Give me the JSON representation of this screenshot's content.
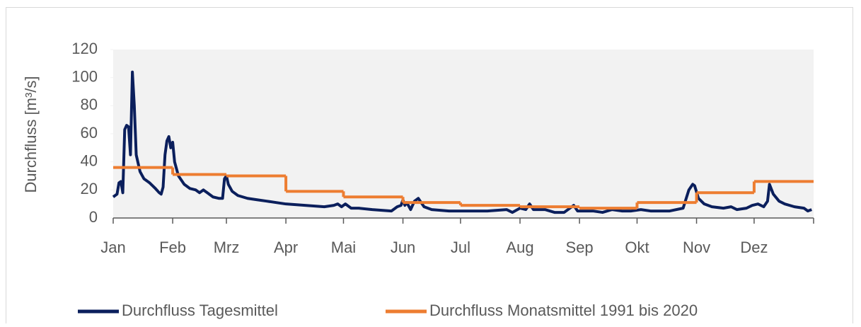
{
  "chart_data": {
    "type": "line",
    "y_label": "Durchfluss [m³/s]",
    "xlim": [
      0,
      365
    ],
    "ylim": [
      0,
      120
    ],
    "yticks": [
      0,
      20,
      40,
      60,
      80,
      100,
      120
    ],
    "xticks": [
      {
        "value": 0,
        "label": "Jan"
      },
      {
        "value": 31,
        "label": "Feb"
      },
      {
        "value": 59,
        "label": "Mrz"
      },
      {
        "value": 90,
        "label": "Apr"
      },
      {
        "value": 120,
        "label": "Mai"
      },
      {
        "value": 151,
        "label": "Jun"
      },
      {
        "value": 181,
        "label": "Jul"
      },
      {
        "value": 212,
        "label": "Aug"
      },
      {
        "value": 243,
        "label": "Sep"
      },
      {
        "value": 273,
        "label": "Okt"
      },
      {
        "value": 304,
        "label": "Nov"
      },
      {
        "value": 334,
        "label": "Dez"
      }
    ],
    "series": [
      {
        "name": "Durchfluss Tagesmittel",
        "color": "#0b1f5c",
        "style": "line",
        "x": [
          0,
          2,
          3,
          4,
          5,
          6,
          7,
          8,
          9,
          10,
          11,
          12,
          14,
          16,
          19,
          22,
          24,
          25,
          26,
          27,
          28,
          29,
          30,
          31,
          32,
          34,
          37,
          40,
          43,
          45,
          47,
          49,
          52,
          55,
          57,
          58,
          59,
          60,
          62,
          65,
          70,
          75,
          80,
          85,
          90,
          100,
          110,
          115,
          117,
          119,
          121,
          124,
          128,
          135,
          145,
          148,
          150,
          151,
          152,
          153,
          155,
          157,
          159,
          160,
          162,
          166,
          175,
          185,
          195,
          205,
          208,
          212,
          215,
          217,
          219,
          225,
          230,
          235,
          240,
          242,
          250,
          255,
          260,
          265,
          270,
          275,
          280,
          290,
          297,
          300,
          302,
          303,
          305,
          308,
          312,
          318,
          322,
          325,
          330,
          333,
          336,
          339,
          341,
          342,
          344,
          347,
          350,
          355,
          360,
          362,
          364
        ],
        "values": [
          15,
          17,
          25,
          26,
          18,
          63,
          66,
          65,
          45,
          104,
          80,
          45,
          33,
          28,
          25,
          21,
          18,
          17,
          22,
          45,
          55,
          58,
          50,
          54,
          40,
          30,
          24,
          21,
          20,
          18,
          20,
          18,
          15,
          14,
          14,
          28,
          30,
          24,
          19,
          16,
          14,
          13,
          12,
          11,
          10,
          9,
          8,
          9,
          10,
          8,
          10,
          7,
          7,
          6,
          5,
          8,
          9,
          13,
          9,
          11,
          6,
          12,
          14,
          12,
          8,
          6,
          5,
          5,
          5,
          6,
          4,
          7,
          6,
          10,
          6,
          6,
          4,
          4,
          9,
          5,
          5,
          4,
          6,
          5,
          5,
          6,
          5,
          5,
          7,
          20,
          24,
          23,
          14,
          10,
          8,
          7,
          8,
          6,
          7,
          9,
          10,
          8,
          12,
          24,
          17,
          12,
          10,
          8,
          7,
          5,
          6
        ]
      },
      {
        "name": "Durchfluss Monatsmittel 1991 bis 2020",
        "color": "#ed7d31",
        "style": "step",
        "x": [
          0,
          31,
          59,
          90,
          120,
          151,
          181,
          212,
          243,
          273,
          304,
          334
        ],
        "values": [
          36,
          31,
          30,
          19,
          15,
          11,
          9,
          8,
          7,
          11,
          18,
          26
        ]
      }
    ]
  }
}
